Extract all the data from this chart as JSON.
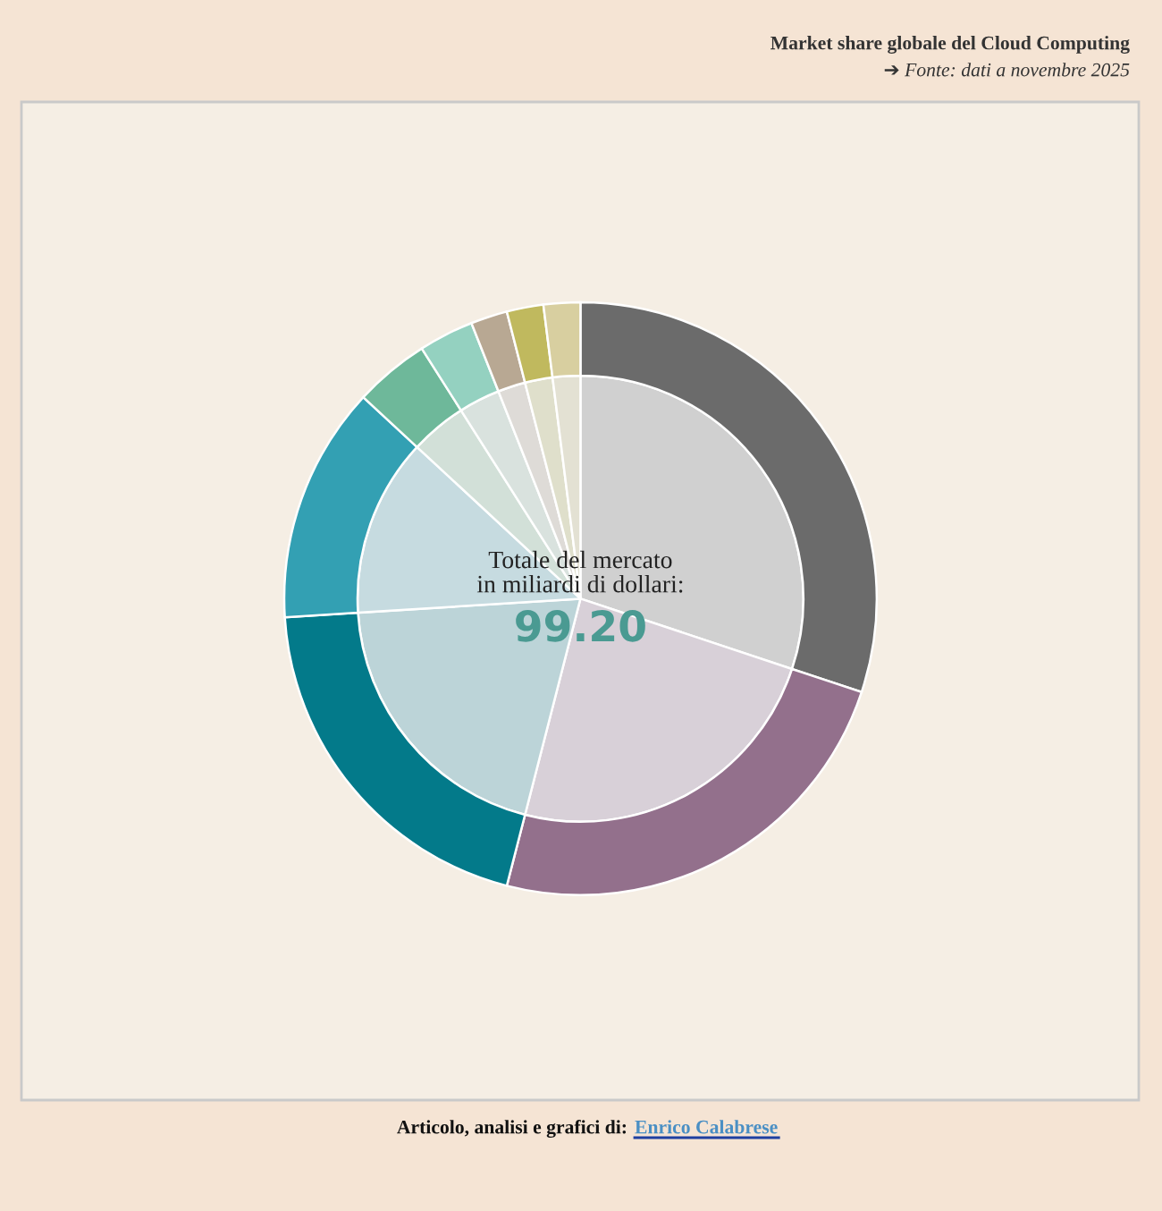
{
  "chart_data": {
    "type": "donut",
    "title": "Market share globale del Cloud Computing",
    "subtitle": "➔ Fonte: dati a novembre 2025",
    "categories": [
      null,
      null,
      null,
      null,
      null,
      null,
      null,
      null,
      null
    ],
    "series": [
      {
        "values": [
          30.1,
          23.9,
          20.0,
          12.9,
          4.1,
          3.0,
          2.0,
          2.0,
          2.0
        ],
        "colors": [
          "#6b6b6b",
          "#93708c",
          "#037a8a",
          "#33a0b3",
          "#6eb89a",
          "#94d1c0",
          "#b8a893",
          "#c0b95e",
          "#d8cfa0"
        ]
      },
      {
        "type": "pie",
        "values": [
          30.1,
          23.9,
          20.0,
          12.9,
          4.1,
          3.0,
          2.0,
          2.0,
          2.0
        ],
        "colors": [
          "#d0d0d0",
          "#d8d0d8",
          "#bcd4d8",
          "#c6dbe0",
          "#d2e0d8",
          "#d9e2de",
          "#dedbd7",
          "#dfdfcb",
          "#e3e1d3"
        ]
      }
    ],
    "annotations": [
      "Totale del mercato\nin miliardi di dollari:",
      "99.20",
      "Articolo, analisi e grafici di:",
      "Enrico Calabrese"
    ]
  }
}
